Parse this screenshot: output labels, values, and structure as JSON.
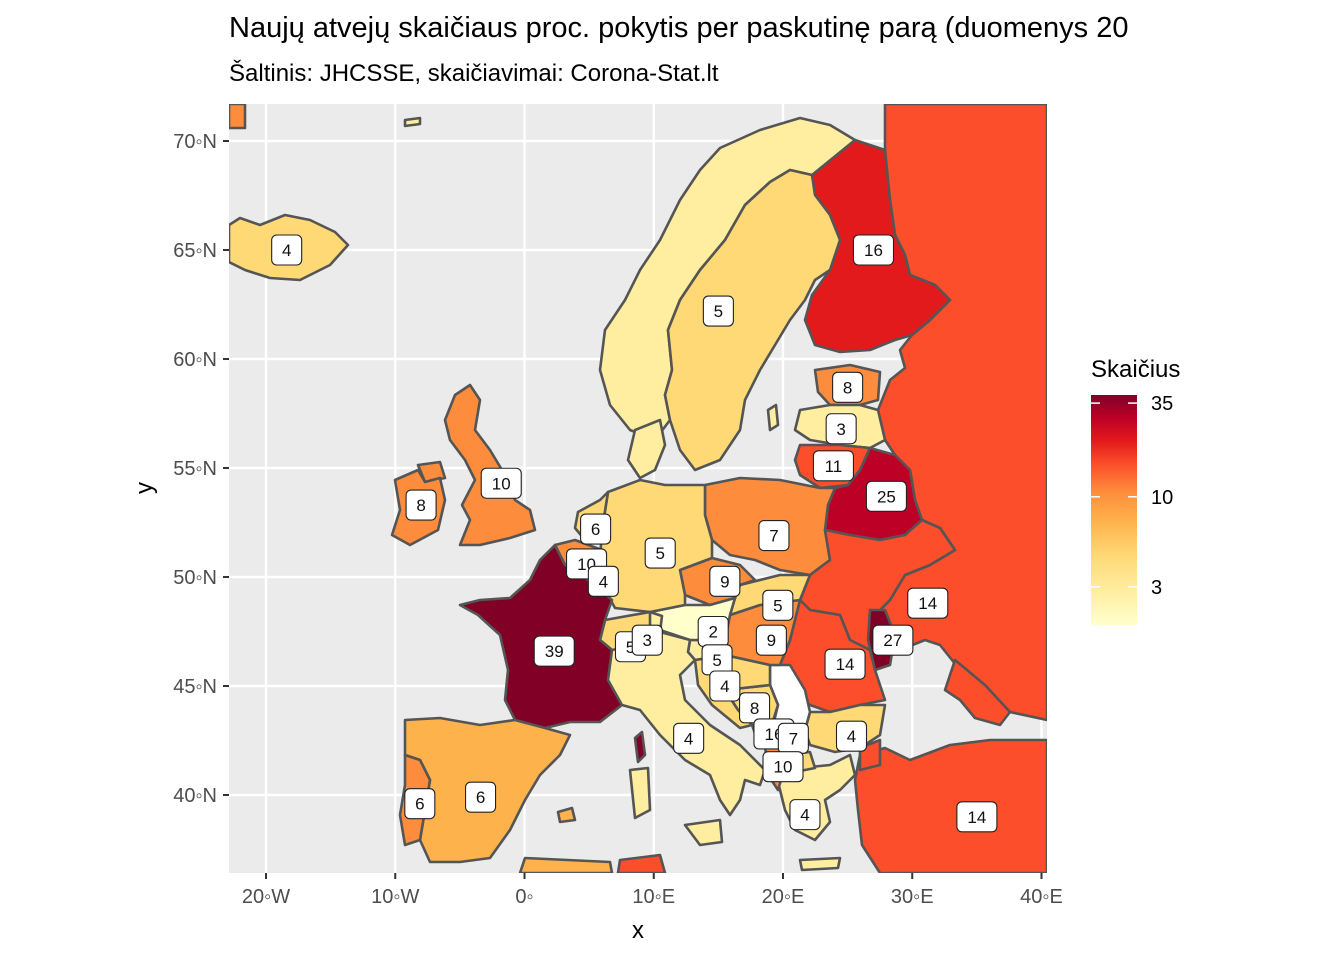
{
  "title": "Naujų atvejų skaičiaus proc. pokytis per paskutinę parą (duomenys 20",
  "subtitle": "Šaltinis: JHCSSE, skaičiavimai: Corona-Stat.lt",
  "chart_data": {
    "type": "choropleth",
    "xlabel": "x",
    "ylabel": "y",
    "xlim": [
      -22.8,
      40.8
    ],
    "ylim": [
      36.5,
      71.7
    ],
    "x_ticks": [
      {
        "value": -20,
        "label": "20◦W"
      },
      {
        "value": -10,
        "label": "10◦W"
      },
      {
        "value": 0,
        "label": "0◦"
      },
      {
        "value": 10,
        "label": "10◦E"
      },
      {
        "value": 20,
        "label": "20◦E"
      },
      {
        "value": 30,
        "label": "30◦E"
      },
      {
        "value": 40,
        "label": "40◦E"
      }
    ],
    "y_ticks": [
      {
        "value": 40,
        "label": "40◦N"
      },
      {
        "value": 45,
        "label": "45◦N"
      },
      {
        "value": 50,
        "label": "50◦N"
      },
      {
        "value": 55,
        "label": "55◦N"
      },
      {
        "value": 60,
        "label": "60◦N"
      },
      {
        "value": 65,
        "label": "65◦N"
      },
      {
        "value": 70,
        "label": "70◦N"
      }
    ],
    "grid": true,
    "panel_background": "#ebebeb",
    "legend": {
      "title": "Skaičius",
      "position": "right",
      "scale": "log",
      "range": [
        1.8,
        39
      ],
      "labels": [
        {
          "value": 35,
          "label": "35"
        },
        {
          "value": 10,
          "label": "10"
        },
        {
          "value": 3,
          "label": "3"
        }
      ],
      "colors": [
        "#ffffcc",
        "#ffeda0",
        "#fed976",
        "#feb24c",
        "#fd8d3c",
        "#fc4e2a",
        "#e31a1c",
        "#bd0026",
        "#800026"
      ]
    },
    "regions": [
      {
        "label": "4",
        "lon": -18.4,
        "lat": 65.0,
        "value": 4
      },
      {
        "label": "16",
        "lon": 27.0,
        "lat": 65.0,
        "value": 16
      },
      {
        "label": "5",
        "lon": 15.0,
        "lat": 62.2,
        "value": 5
      },
      {
        "label": "8",
        "lon": 25.0,
        "lat": 58.7,
        "value": 8
      },
      {
        "label": "3",
        "lon": 24.5,
        "lat": 56.8,
        "value": 3
      },
      {
        "label": "11",
        "lon": 23.9,
        "lat": 55.1,
        "value": 11
      },
      {
        "label": "25",
        "lon": 28.0,
        "lat": 53.7,
        "value": 25
      },
      {
        "label": "10",
        "lon": -1.8,
        "lat": 54.3,
        "value": 10
      },
      {
        "label": "8",
        "lon": -8.0,
        "lat": 53.3,
        "value": 8
      },
      {
        "label": "6",
        "lon": 5.5,
        "lat": 52.2,
        "value": 6
      },
      {
        "label": "10",
        "lon": 4.8,
        "lat": 50.6,
        "value": 10
      },
      {
        "label": "4",
        "lon": 6.1,
        "lat": 49.8,
        "value": 4
      },
      {
        "label": "5",
        "lon": 10.5,
        "lat": 51.1,
        "value": 5
      },
      {
        "label": "7",
        "lon": 19.3,
        "lat": 51.9,
        "value": 7
      },
      {
        "label": "9",
        "lon": 15.5,
        "lat": 49.8,
        "value": 9
      },
      {
        "label": "5",
        "lon": 19.6,
        "lat": 48.7,
        "value": 5
      },
      {
        "label": "2",
        "lon": 14.6,
        "lat": 47.5,
        "value": 2
      },
      {
        "label": "9",
        "lon": 19.1,
        "lat": 47.1,
        "value": 9
      },
      {
        "label": "14",
        "lon": 31.2,
        "lat": 48.8,
        "value": 14
      },
      {
        "label": "27",
        "lon": 28.5,
        "lat": 47.1,
        "value": 27
      },
      {
        "label": "14",
        "lon": 24.8,
        "lat": 46.0,
        "value": 14
      },
      {
        "label": "39",
        "lon": 2.3,
        "lat": 46.6,
        "value": 39
      },
      {
        "label": "5",
        "lon": 8.2,
        "lat": 46.8,
        "value": 5
      },
      {
        "label": "3",
        "lon": 9.5,
        "lat": 47.1,
        "value": 3
      },
      {
        "label": "5",
        "lon": 14.9,
        "lat": 46.2,
        "value": 5
      },
      {
        "label": "4",
        "lon": 15.5,
        "lat": 45.0,
        "value": 4
      },
      {
        "label": "8",
        "lon": 17.8,
        "lat": 44.0,
        "value": 8
      },
      {
        "label": "16",
        "lon": 19.3,
        "lat": 42.8,
        "value": 16
      },
      {
        "label": "7",
        "lon": 20.8,
        "lat": 42.6,
        "value": 7
      },
      {
        "label": "4",
        "lon": 25.3,
        "lat": 42.7,
        "value": 4
      },
      {
        "label": "4",
        "lon": 12.7,
        "lat": 42.6,
        "value": 4
      },
      {
        "label": "10",
        "lon": 20.0,
        "lat": 41.3,
        "value": 10
      },
      {
        "label": "4",
        "lon": 21.7,
        "lat": 39.1,
        "value": 4
      },
      {
        "label": "6",
        "lon": -8.1,
        "lat": 39.6,
        "value": 6
      },
      {
        "label": "6",
        "lon": -3.4,
        "lat": 39.9,
        "value": 6
      },
      {
        "label": "14",
        "lon": 35.0,
        "lat": 39.0,
        "value": 14
      }
    ]
  }
}
